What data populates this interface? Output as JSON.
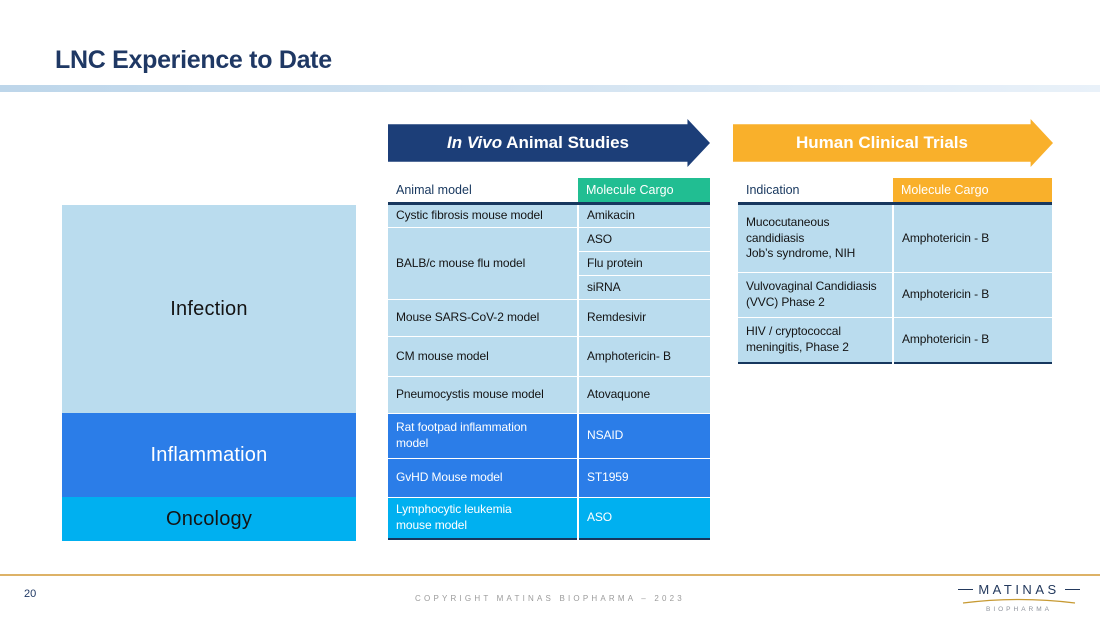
{
  "slide": {
    "title": "LNC Experience to Date",
    "page_number": "20",
    "copyright": "COPYRIGHT MATINAS BIOPHARMA – 2023"
  },
  "logo": {
    "name": "MATINAS",
    "sub": "BIOPHARMA",
    "navy": "#23395d",
    "gold": "#c79a33"
  },
  "banners": {
    "animal_studies": {
      "italic_part": "In Vivo",
      "text_part": " Animal Studies",
      "color": "#1c3e78"
    },
    "clinical_trials": {
      "label": "Human Clinical Trials",
      "color": "#f9b02b"
    }
  },
  "categories": [
    {
      "label": "Infection",
      "color": "#badcee",
      "text_color": "#141414"
    },
    {
      "label": "Inflammation",
      "color": "#2b7de8",
      "text_color": "#ffffff"
    },
    {
      "label": "Oncology",
      "color": "#00b0f0",
      "text_color": "#141414"
    }
  ],
  "animal_table": {
    "headers": [
      "Animal model",
      "Molecule Cargo"
    ],
    "header_accent": "#21be92",
    "themes": {
      "light": {
        "bg": "#badcee",
        "text": "#141414"
      },
      "medium": {
        "bg": "#2b7de8",
        "text": "#ffffff"
      },
      "cyan": {
        "bg": "#00b0f0",
        "text": "#ffffff"
      }
    },
    "groups": [
      {
        "model": "Cystic fibrosis mouse model",
        "cargos": [
          "Amikacin"
        ],
        "theme": "light"
      },
      {
        "model": "BALB/c mouse flu model",
        "cargos": [
          "ASO",
          "Flu protein",
          "siRNA"
        ],
        "theme": "light"
      },
      {
        "model": "Mouse SARS-CoV-2 model",
        "cargos": [
          "Remdesivir"
        ],
        "theme": "light"
      },
      {
        "model": "CM mouse model",
        "cargos": [
          "Amphotericin- B"
        ],
        "theme": "light"
      },
      {
        "model": "Pneumocystis mouse model",
        "cargos": [
          "Atovaquone"
        ],
        "theme": "light"
      },
      {
        "model": "Rat footpad inflammation\nmodel",
        "cargos": [
          "NSAID"
        ],
        "theme": "medium"
      },
      {
        "model": "GvHD Mouse model",
        "cargos": [
          "ST1959"
        ],
        "theme": "medium"
      },
      {
        "model": "Lymphocytic leukemia\nmouse model",
        "cargos": [
          "ASO"
        ],
        "theme": "cyan"
      }
    ]
  },
  "clinical_table": {
    "headers": [
      "Indication",
      "Molecule Cargo"
    ],
    "header_accent": "#f9b02b",
    "row_bg": "#badcee",
    "row_text": "#141414",
    "rows": [
      {
        "indication": "Mucocutaneous\ncandidiasis\nJob’s syndrome, NIH",
        "cargo": "Amphotericin - B"
      },
      {
        "indication": "Vulvovaginal Candidiasis\n(VVC) Phase 2",
        "cargo": "Amphotericin - B"
      },
      {
        "indication": "HIV / cryptococcal\nmeningitis, Phase 2",
        "cargo": "Amphotericin - B"
      }
    ]
  }
}
